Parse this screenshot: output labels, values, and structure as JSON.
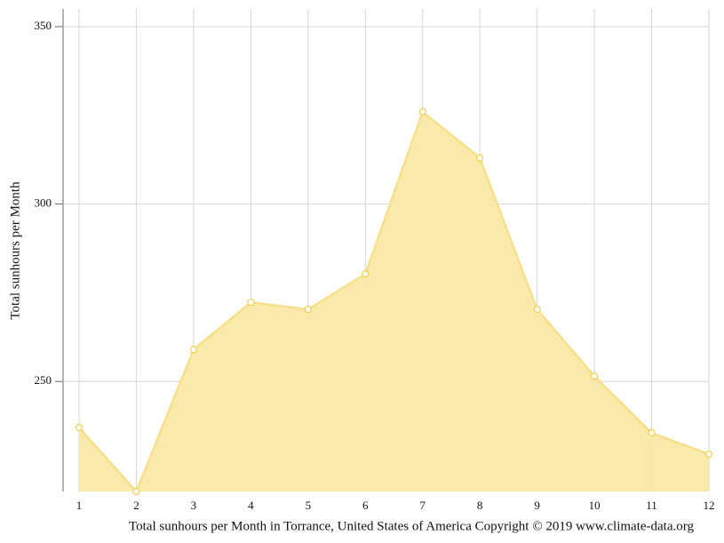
{
  "chart_data": {
    "type": "area",
    "x_label": "Total sunhours per Month in Torrance, United States of America Copyright © 2019 www.climate-data.org",
    "y_label": "Total sunhours per Month",
    "x": [
      1,
      2,
      3,
      4,
      5,
      6,
      7,
      8,
      9,
      10,
      11,
      12
    ],
    "series": [
      {
        "name": "Total sunhours per Month",
        "color": "#f9e9a6",
        "values": [
          237,
          219,
          259,
          272.3,
          270.3,
          280.3,
          326,
          313,
          270.3,
          251.5,
          235.5,
          229.5
        ]
      }
    ],
    "xlim": [
      1,
      12
    ],
    "xticks": [
      1,
      2,
      3,
      4,
      5,
      6,
      7,
      8,
      9,
      10,
      11,
      12
    ],
    "ylim": [
      219,
      355
    ],
    "yticks": [
      250,
      300,
      350
    ],
    "grid": true
  }
}
